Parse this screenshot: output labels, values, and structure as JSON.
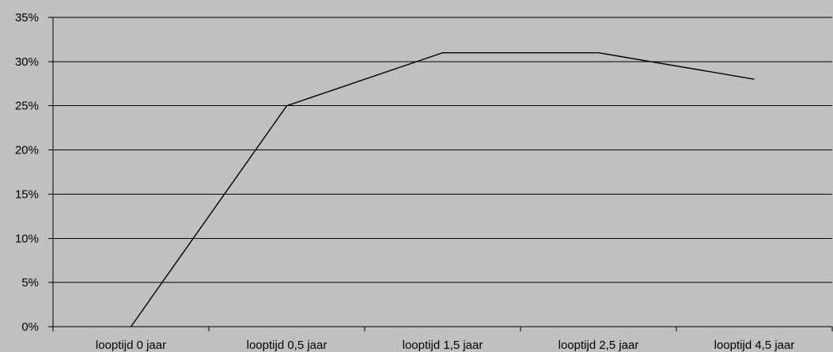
{
  "chart_data": {
    "type": "line",
    "title": "",
    "xlabel": "",
    "ylabel": "",
    "categories": [
      "looptijd 0 jaar",
      "looptijd 0,5 jaar",
      "looptijd 1,5 jaar",
      "looptijd 2,5 jaar",
      "looptijd 4,5 jaar"
    ],
    "series": [
      {
        "values": [
          0,
          25,
          31,
          31,
          28
        ]
      }
    ],
    "ylim": [
      0,
      35
    ],
    "yticks": [
      0,
      5,
      10,
      15,
      20,
      25,
      30,
      35
    ],
    "ytick_labels": [
      "0%",
      "5%",
      "10%",
      "15%",
      "20%",
      "25%",
      "30%",
      "35%"
    ],
    "grid": true,
    "legend": "none",
    "colors": {
      "background": "#c0c0c0",
      "line": "#000000",
      "grid": "#000000"
    }
  }
}
